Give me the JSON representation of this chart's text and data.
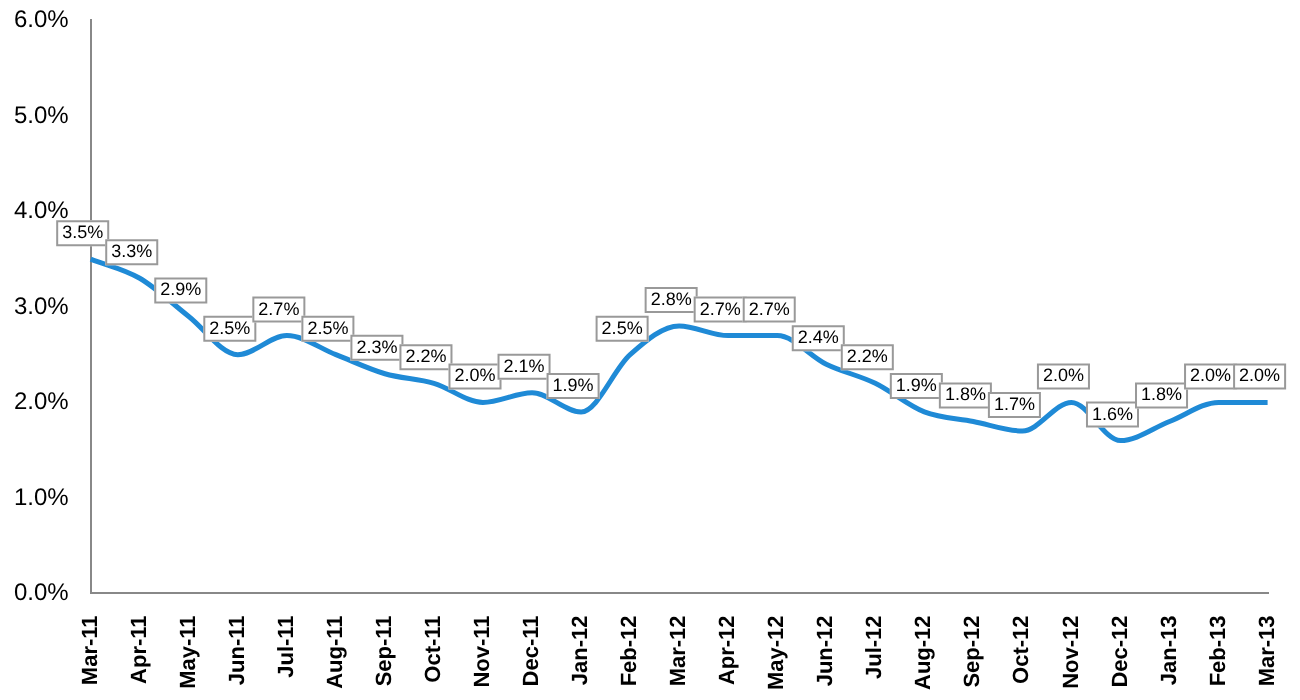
{
  "chart_data": {
    "type": "line",
    "categories": [
      "Mar-11",
      "Apr-11",
      "May-11",
      "Jun-11",
      "Jul-11",
      "Aug-11",
      "Sep-11",
      "Oct-11",
      "Nov-11",
      "Dec-11",
      "Jan-12",
      "Feb-12",
      "Mar-12",
      "Apr-12",
      "May-12",
      "Jun-12",
      "Jul-12",
      "Aug-12",
      "Sep-12",
      "Oct-12",
      "Nov-12",
      "Dec-12",
      "Jan-13",
      "Feb-13",
      "Mar-13"
    ],
    "values": [
      3.5,
      3.3,
      2.9,
      2.5,
      2.7,
      2.5,
      2.3,
      2.2,
      2.0,
      2.1,
      1.9,
      2.5,
      2.8,
      2.7,
      2.7,
      2.4,
      2.2,
      1.9,
      1.8,
      1.7,
      2.0,
      1.6,
      1.8,
      2.0,
      2.0
    ],
    "value_labels": [
      "3.5%",
      "3.3%",
      "2.9%",
      "2.5%",
      "2.7%",
      "2.5%",
      "2.3%",
      "2.2%",
      "2.0%",
      "2.1%",
      "1.9%",
      "2.5%",
      "2.8%",
      "2.7%",
      "2.7%",
      "2.4%",
      "2.2%",
      "1.9%",
      "1.8%",
      "1.7%",
      "2.0%",
      "1.6%",
      "1.8%",
      "2.0%",
      "2.0%"
    ],
    "color": "#1f8ad6",
    "ylim": [
      0,
      6
    ],
    "yticks": [
      {
        "value": 0,
        "label": "0.0%"
      },
      {
        "value": 1,
        "label": "1.0%"
      },
      {
        "value": 2,
        "label": "2.0%"
      },
      {
        "value": 3,
        "label": "3.0%"
      },
      {
        "value": 4,
        "label": "4.0%"
      },
      {
        "value": 5,
        "label": "5.0%"
      },
      {
        "value": 6,
        "label": "6.0%"
      }
    ],
    "grid": false,
    "legend": false,
    "marker": "none",
    "line_style": "solid"
  }
}
